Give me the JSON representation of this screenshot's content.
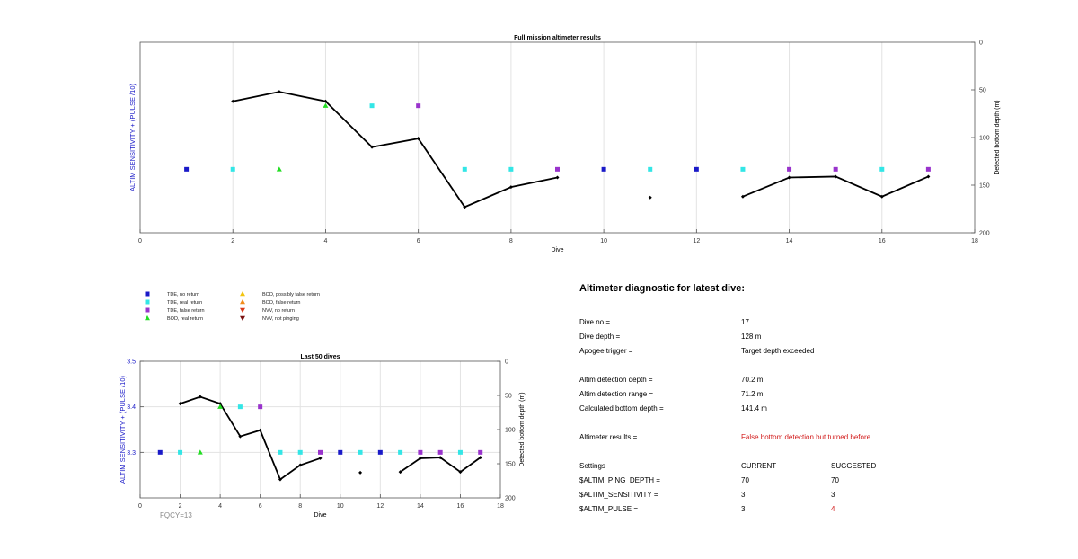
{
  "chart_data": [
    {
      "type": "scatter",
      "title": "Full mission altimeter results",
      "xlabel": "Dive",
      "ylabel": "ALTIM SENSITIVITY + (PULSE /10)",
      "y2label": "Detected bottom depth (m)",
      "xlim": [
        0,
        18
      ],
      "ylim_right": [
        0,
        200
      ],
      "y2_inverted": true,
      "x_ticks": [
        0,
        2,
        4,
        6,
        8,
        10,
        12,
        14,
        16,
        18
      ],
      "y2_ticks": [
        0,
        50,
        100,
        150,
        200
      ],
      "grid": "vertical",
      "series": [
        {
          "name": "TDE, no return",
          "color": "#1a1ac8",
          "marker": "square",
          "x": [
            1,
            10,
            12
          ],
          "y": [
            3.3,
            3.3,
            3.3
          ]
        },
        {
          "name": "TDE, real return",
          "color": "#33e6e6",
          "marker": "square",
          "x": [
            2,
            5,
            7,
            8,
            11,
            13,
            16
          ],
          "y": [
            3.3,
            3.4,
            3.3,
            3.3,
            3.3,
            3.3,
            3.3
          ]
        },
        {
          "name": "TDE, false return",
          "color": "#9933cc",
          "marker": "square",
          "x": [
            6,
            9,
            14,
            15,
            17
          ],
          "y": [
            3.4,
            3.3,
            3.3,
            3.3,
            3.3
          ]
        },
        {
          "name": "BOD, real return",
          "color": "#22dd22",
          "marker": "triangle-up",
          "x": [
            3,
            4
          ],
          "y": [
            3.3,
            3.4
          ]
        }
      ],
      "bottom_depth_segments": [
        [
          [
            2,
            62
          ],
          [
            3,
            52
          ],
          [
            4,
            62
          ],
          [
            5,
            110
          ],
          [
            6,
            101
          ],
          [
            7,
            173
          ],
          [
            8,
            152
          ],
          [
            9,
            142
          ]
        ],
        [
          [
            11,
            163
          ]
        ],
        [
          [
            13,
            162
          ],
          [
            14,
            142
          ],
          [
            15,
            141
          ],
          [
            16,
            162
          ],
          [
            17,
            141
          ]
        ]
      ]
    },
    {
      "type": "scatter",
      "title": "Last 50 dives",
      "xlabel": "Dive",
      "ylabel": "ALTIM SENSITIVITY + (PULSE /10)",
      "y2label": "Detected bottom depth (m)",
      "xlim": [
        0,
        18
      ],
      "ylim": [
        3.2,
        3.5
      ],
      "ylim_right": [
        0,
        200
      ],
      "y2_inverted": true,
      "x_ticks": [
        0,
        2,
        4,
        6,
        8,
        10,
        12,
        14,
        16,
        18
      ],
      "y_ticks": [
        "3.5",
        "3.4",
        "3.3"
      ],
      "y_tick_values": [
        3.5,
        3.4,
        3.3
      ],
      "y2_ticks": [
        0,
        50,
        100,
        150,
        200
      ],
      "grid": "both",
      "note": "FQCY=13"
    }
  ],
  "legend": {
    "left": [
      {
        "label": "TDE, no return",
        "color": "#1a1ac8",
        "marker": "square"
      },
      {
        "label": "TDE, real return",
        "color": "#33e6e6",
        "marker": "square"
      },
      {
        "label": "TDE, false return",
        "color": "#9933cc",
        "marker": "square"
      },
      {
        "label": "BOD, real return",
        "color": "#22dd22",
        "marker": "triangle-up"
      }
    ],
    "right": [
      {
        "label": "BOD, possibly false return",
        "color": "#f2c40f",
        "marker": "triangle-up"
      },
      {
        "label": "BOD, false return",
        "color": "#f28c1a",
        "marker": "triangle-up"
      },
      {
        "label": "NVV, no return",
        "color": "#d93a1a",
        "marker": "triangle-down"
      },
      {
        "label": "NVV, not pinging",
        "color": "#7a1010",
        "marker": "triangle-down"
      }
    ]
  },
  "diagnostic": {
    "title": "Altimeter diagnostic for latest dive:",
    "dive_no_label": "Dive no =",
    "dive_no": "17",
    "dive_depth_label": "Dive depth =",
    "dive_depth": "128 m",
    "apogee_label": "Apogee trigger =",
    "apogee": "Target depth exceeded",
    "detect_depth_label": "Altim detection depth =",
    "detect_depth": "70.2 m",
    "detect_range_label": "Altim detection range =",
    "detect_range": "71.2 m",
    "bottom_depth_label": "Calculated bottom depth =",
    "bottom_depth": "141.4 m",
    "results_label": "Altimeter results =",
    "results": "False bottom detection but turned before",
    "settings_label": "Settings",
    "current_label": "CURRENT",
    "suggested_label": "SUGGESTED",
    "ping_depth_label": "$ALTIM_PING_DEPTH =",
    "ping_depth_current": "70",
    "ping_depth_suggested": "70",
    "sensitivity_label": "$ALTIM_SENSITIVITY =",
    "sensitivity_current": "3",
    "sensitivity_suggested": "3",
    "pulse_label": "$ALTIM_PULSE =",
    "pulse_current": "3",
    "pulse_suggested": "4",
    "alert_color": "#d21a1a"
  }
}
